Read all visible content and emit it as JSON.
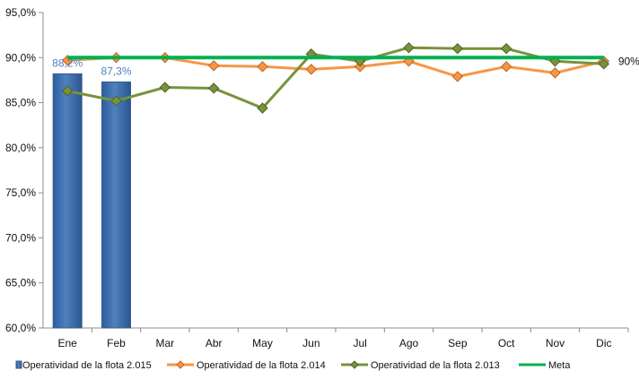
{
  "chart_data": {
    "type": "bar",
    "categories": [
      "Ene",
      "Feb",
      "Mar",
      "Abr",
      "May",
      "Jun",
      "Jul",
      "Ago",
      "Sep",
      "Oct",
      "Nov",
      "Dic"
    ],
    "ylim": [
      60,
      95
    ],
    "yticks": [
      "60,0%",
      "65,0%",
      "70,0%",
      "75,0%",
      "80,0%",
      "85,0%",
      "90,0%",
      "95,0%"
    ],
    "grid": false,
    "legend_position": "bottom",
    "series": [
      {
        "name": "Operatividad de la flota 2.015",
        "type": "bar",
        "color": "#4f81bd",
        "values": [
          88.2,
          87.3,
          null,
          null,
          null,
          null,
          null,
          null,
          null,
          null,
          null,
          null
        ]
      },
      {
        "name": "Operatividad de la flota 2.014",
        "type": "line",
        "color": "#f79646",
        "values": [
          89.7,
          90.0,
          90.0,
          89.1,
          89.0,
          88.7,
          89.0,
          89.6,
          87.9,
          89.0,
          88.3,
          89.6
        ]
      },
      {
        "name": "Operatividad de la flota 2.013",
        "type": "line",
        "color": "#77933c",
        "values": [
          86.3,
          85.2,
          86.7,
          86.6,
          84.4,
          90.4,
          89.6,
          91.1,
          91.0,
          91.0,
          89.6,
          89.3
        ]
      },
      {
        "name": "Meta",
        "type": "line",
        "color": "#00b050",
        "values": [
          90,
          90,
          90,
          90,
          90,
          90,
          90,
          90,
          90,
          90,
          90,
          90
        ]
      }
    ],
    "data_labels": [
      "88,2%",
      "87,3%"
    ],
    "meta_label": "90%"
  }
}
